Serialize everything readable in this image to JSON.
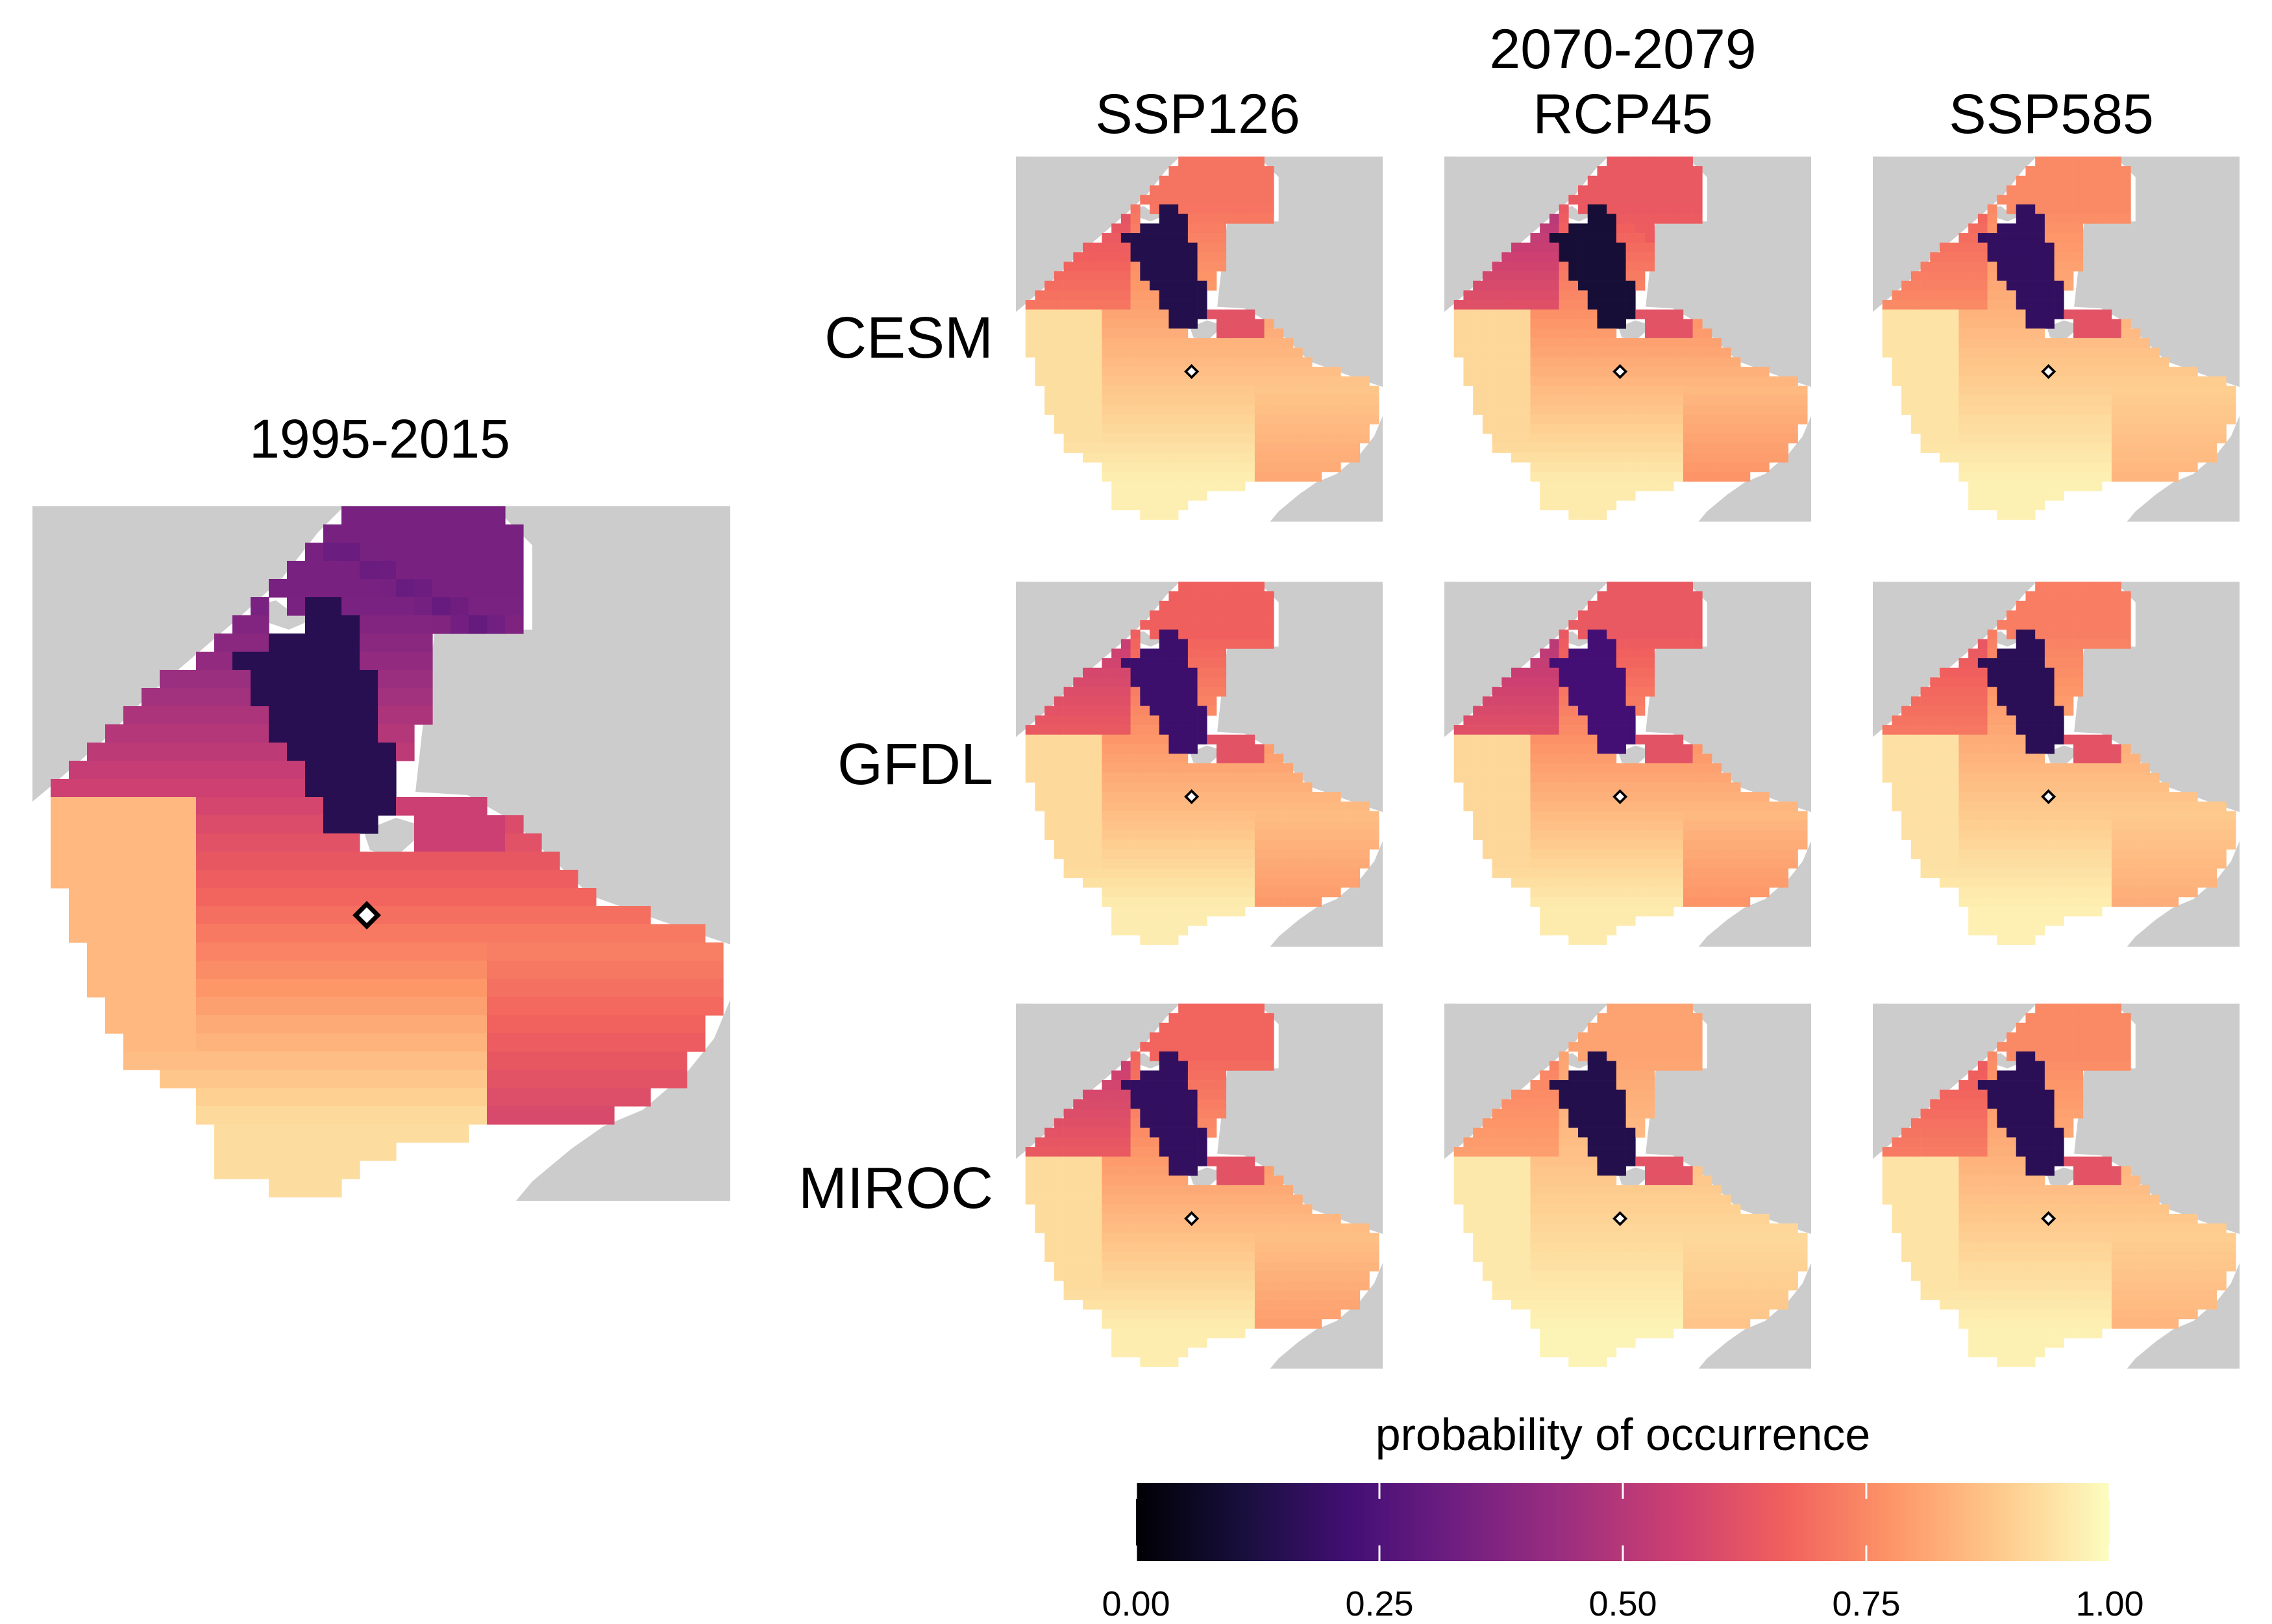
{
  "baseline": {
    "title": "1995-2015"
  },
  "projection": {
    "period": "2070-2079",
    "scenarios": [
      "SSP126",
      "RCP45",
      "SSP585"
    ],
    "models": [
      "CESM",
      "GFDL",
      "MIROC"
    ]
  },
  "legend": {
    "title": "probability of occurrence",
    "ticks": [
      "0.00",
      "0.25",
      "0.50",
      "0.75",
      "1.00"
    ],
    "tick_values": [
      0,
      0.25,
      0.5,
      0.75,
      1.0
    ],
    "range": [
      0,
      1
    ],
    "palette": "magma",
    "colors": [
      "#000004",
      "#180f3d",
      "#440f76",
      "#721f81",
      "#9e2f7f",
      "#cd4071",
      "#f1605d",
      "#fd9668",
      "#feca8d",
      "#fcfdbf"
    ]
  },
  "map_style": {
    "land_color": "#cccccc",
    "water_color": "#ffffff",
    "marker": "diamond",
    "marker_fill": "#ffffff",
    "marker_stroke": "#000000"
  }
}
